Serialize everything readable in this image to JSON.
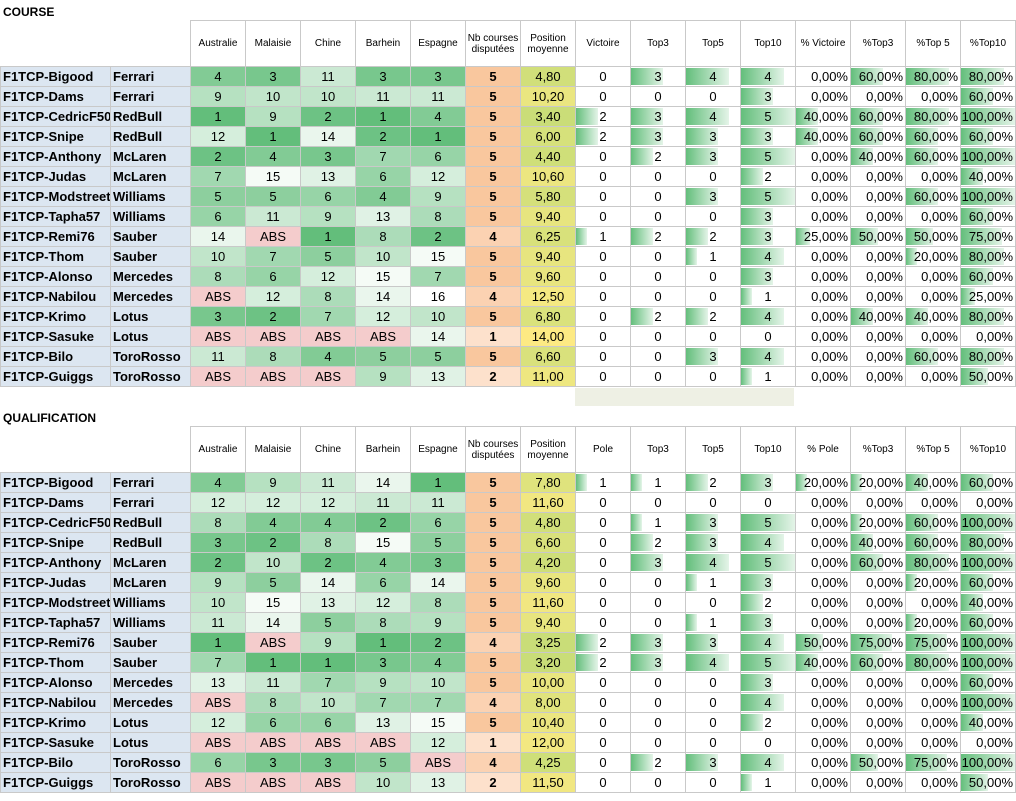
{
  "course": {
    "title": "COURSE",
    "headers": [
      "Australie",
      "Malaisie",
      "Chine",
      "Barhein",
      "Espagne",
      "Nb courses disputées",
      "Position moyenne",
      "Victoire",
      "Top3",
      "Top5",
      "Top10",
      "% Victoire",
      "%Top3",
      "%Top 5",
      "%Top10"
    ],
    "rows": [
      {
        "pilot": "F1TCP-Bigood",
        "team": "Ferrari",
        "races": [
          "4",
          "3",
          "11",
          "3",
          "3"
        ],
        "nb": "5",
        "avg": "4,80",
        "v": "0",
        "t3": "3",
        "t5": "4",
        "t10": "4",
        "pv": "0,00%",
        "p3": "60,00%",
        "p5": "80,00%",
        "p10": "80,00%"
      },
      {
        "pilot": "F1TCP-Dams",
        "team": "Ferrari",
        "races": [
          "9",
          "10",
          "10",
          "11",
          "11"
        ],
        "nb": "5",
        "avg": "10,20",
        "v": "0",
        "t3": "0",
        "t5": "0",
        "t10": "3",
        "pv": "0,00%",
        "p3": "0,00%",
        "p5": "0,00%",
        "p10": "60,00%"
      },
      {
        "pilot": "F1TCP-CedricF50",
        "team": "RedBull",
        "races": [
          "1",
          "9",
          "2",
          "1",
          "4"
        ],
        "nb": "5",
        "avg": "3,40",
        "v": "2",
        "t3": "3",
        "t5": "4",
        "t10": "5",
        "pv": "40,00%",
        "p3": "60,00%",
        "p5": "80,00%",
        "p10": "100,00%"
      },
      {
        "pilot": "F1TCP-Snipe",
        "team": "RedBull",
        "races": [
          "12",
          "1",
          "14",
          "2",
          "1"
        ],
        "nb": "5",
        "avg": "6,00",
        "v": "2",
        "t3": "3",
        "t5": "3",
        "t10": "3",
        "pv": "40,00%",
        "p3": "60,00%",
        "p5": "60,00%",
        "p10": "60,00%"
      },
      {
        "pilot": "F1TCP-Anthony",
        "team": "McLaren",
        "races": [
          "2",
          "4",
          "3",
          "7",
          "6"
        ],
        "nb": "5",
        "avg": "4,40",
        "v": "0",
        "t3": "2",
        "t5": "3",
        "t10": "5",
        "pv": "0,00%",
        "p3": "40,00%",
        "p5": "60,00%",
        "p10": "100,00%"
      },
      {
        "pilot": "F1TCP-Judas",
        "team": "McLaren",
        "races": [
          "7",
          "15",
          "13",
          "6",
          "12"
        ],
        "nb": "5",
        "avg": "10,60",
        "v": "0",
        "t3": "0",
        "t5": "0",
        "t10": "2",
        "pv": "0,00%",
        "p3": "0,00%",
        "p5": "0,00%",
        "p10": "40,00%"
      },
      {
        "pilot": "F1TCP-Modstreet",
        "team": "Williams",
        "races": [
          "5",
          "5",
          "6",
          "4",
          "9"
        ],
        "nb": "5",
        "avg": "5,80",
        "v": "0",
        "t3": "0",
        "t5": "3",
        "t10": "5",
        "pv": "0,00%",
        "p3": "0,00%",
        "p5": "60,00%",
        "p10": "100,00%"
      },
      {
        "pilot": "F1TCP-Tapha57",
        "team": "Williams",
        "races": [
          "6",
          "11",
          "9",
          "13",
          "8"
        ],
        "nb": "5",
        "avg": "9,40",
        "v": "0",
        "t3": "0",
        "t5": "0",
        "t10": "3",
        "pv": "0,00%",
        "p3": "0,00%",
        "p5": "0,00%",
        "p10": "60,00%"
      },
      {
        "pilot": "F1TCP-Remi76",
        "team": "Sauber",
        "races": [
          "14",
          "ABS",
          "1",
          "8",
          "2"
        ],
        "nb": "4",
        "avg": "6,25",
        "v": "1",
        "t3": "2",
        "t5": "2",
        "t10": "3",
        "pv": "25,00%",
        "p3": "50,00%",
        "p5": "50,00%",
        "p10": "75,00%"
      },
      {
        "pilot": "F1TCP-Thom",
        "team": "Sauber",
        "races": [
          "10",
          "7",
          "5",
          "10",
          "15"
        ],
        "nb": "5",
        "avg": "9,40",
        "v": "0",
        "t3": "0",
        "t5": "1",
        "t10": "4",
        "pv": "0,00%",
        "p3": "0,00%",
        "p5": "20,00%",
        "p10": "80,00%"
      },
      {
        "pilot": "F1TCP-Alonso",
        "team": "Mercedes",
        "races": [
          "8",
          "6",
          "12",
          "15",
          "7"
        ],
        "nb": "5",
        "avg": "9,60",
        "v": "0",
        "t3": "0",
        "t5": "0",
        "t10": "3",
        "pv": "0,00%",
        "p3": "0,00%",
        "p5": "0,00%",
        "p10": "60,00%"
      },
      {
        "pilot": "F1TCP-Nabilou",
        "team": "Mercedes",
        "races": [
          "ABS",
          "12",
          "8",
          "14",
          "16"
        ],
        "nb": "4",
        "avg": "12,50",
        "v": "0",
        "t3": "0",
        "t5": "0",
        "t10": "1",
        "pv": "0,00%",
        "p3": "0,00%",
        "p5": "0,00%",
        "p10": "25,00%"
      },
      {
        "pilot": "F1TCP-Krimo",
        "team": "Lotus",
        "races": [
          "3",
          "2",
          "7",
          "12",
          "10"
        ],
        "nb": "5",
        "avg": "6,80",
        "v": "0",
        "t3": "2",
        "t5": "2",
        "t10": "4",
        "pv": "0,00%",
        "p3": "40,00%",
        "p5": "40,00%",
        "p10": "80,00%"
      },
      {
        "pilot": "F1TCP-Sasuke",
        "team": "Lotus",
        "races": [
          "ABS",
          "ABS",
          "ABS",
          "ABS",
          "14"
        ],
        "nb": "1",
        "avg": "14,00",
        "v": "0",
        "t3": "0",
        "t5": "0",
        "t10": "0",
        "pv": "0,00%",
        "p3": "0,00%",
        "p5": "0,00%",
        "p10": "0,00%"
      },
      {
        "pilot": "F1TCP-Bilo",
        "team": "ToroRosso",
        "races": [
          "11",
          "8",
          "4",
          "5",
          "5"
        ],
        "nb": "5",
        "avg": "6,60",
        "v": "0",
        "t3": "0",
        "t5": "3",
        "t10": "4",
        "pv": "0,00%",
        "p3": "0,00%",
        "p5": "60,00%",
        "p10": "80,00%"
      },
      {
        "pilot": "F1TCP-Guiggs",
        "team": "ToroRosso",
        "races": [
          "ABS",
          "ABS",
          "ABS",
          "9",
          "13"
        ],
        "nb": "2",
        "avg": "11,00",
        "v": "0",
        "t3": "0",
        "t5": "0",
        "t10": "1",
        "pv": "0,00%",
        "p3": "0,00%",
        "p5": "0,00%",
        "p10": "50,00%"
      }
    ]
  },
  "qualification": {
    "title": "QUALIFICATION",
    "headers": [
      "Australie",
      "Malaisie",
      "Chine",
      "Barhein",
      "Espagne",
      "Nb courses disputées",
      "Position moyenne",
      "Pole",
      "Top3",
      "Top5",
      "Top10",
      "% Pole",
      "%Top3",
      "%Top 5",
      "%Top10"
    ],
    "rows": [
      {
        "pilot": "F1TCP-Bigood",
        "team": "Ferrari",
        "races": [
          "4",
          "9",
          "11",
          "14",
          "1"
        ],
        "nb": "5",
        "avg": "7,80",
        "v": "1",
        "t3": "1",
        "t5": "2",
        "t10": "3",
        "pv": "20,00%",
        "p3": "20,00%",
        "p5": "40,00%",
        "p10": "60,00%"
      },
      {
        "pilot": "F1TCP-Dams",
        "team": "Ferrari",
        "races": [
          "12",
          "12",
          "12",
          "11",
          "11"
        ],
        "nb": "5",
        "avg": "11,60",
        "v": "0",
        "t3": "0",
        "t5": "0",
        "t10": "0",
        "pv": "0,00%",
        "p3": "0,00%",
        "p5": "0,00%",
        "p10": "0,00%"
      },
      {
        "pilot": "F1TCP-CedricF50",
        "team": "RedBull",
        "races": [
          "8",
          "4",
          "4",
          "2",
          "6"
        ],
        "nb": "5",
        "avg": "4,80",
        "v": "0",
        "t3": "1",
        "t5": "3",
        "t10": "5",
        "pv": "0,00%",
        "p3": "20,00%",
        "p5": "60,00%",
        "p10": "100,00%"
      },
      {
        "pilot": "F1TCP-Snipe",
        "team": "RedBull",
        "races": [
          "3",
          "2",
          "8",
          "15",
          "5"
        ],
        "nb": "5",
        "avg": "6,60",
        "v": "0",
        "t3": "2",
        "t5": "3",
        "t10": "4",
        "pv": "0,00%",
        "p3": "40,00%",
        "p5": "60,00%",
        "p10": "80,00%"
      },
      {
        "pilot": "F1TCP-Anthony",
        "team": "McLaren",
        "races": [
          "2",
          "10",
          "2",
          "4",
          "3"
        ],
        "nb": "5",
        "avg": "4,20",
        "v": "0",
        "t3": "3",
        "t5": "4",
        "t10": "5",
        "pv": "0,00%",
        "p3": "60,00%",
        "p5": "80,00%",
        "p10": "100,00%"
      },
      {
        "pilot": "F1TCP-Judas",
        "team": "McLaren",
        "races": [
          "9",
          "5",
          "14",
          "6",
          "14"
        ],
        "nb": "5",
        "avg": "9,60",
        "v": "0",
        "t3": "0",
        "t5": "1",
        "t10": "3",
        "pv": "0,00%",
        "p3": "0,00%",
        "p5": "20,00%",
        "p10": "60,00%"
      },
      {
        "pilot": "F1TCP-Modstreet",
        "team": "Williams",
        "races": [
          "10",
          "15",
          "13",
          "12",
          "8"
        ],
        "nb": "5",
        "avg": "11,60",
        "v": "0",
        "t3": "0",
        "t5": "0",
        "t10": "2",
        "pv": "0,00%",
        "p3": "0,00%",
        "p5": "0,00%",
        "p10": "40,00%"
      },
      {
        "pilot": "F1TCP-Tapha57",
        "team": "Williams",
        "races": [
          "11",
          "14",
          "5",
          "8",
          "9"
        ],
        "nb": "5",
        "avg": "9,40",
        "v": "0",
        "t3": "0",
        "t5": "1",
        "t10": "3",
        "pv": "0,00%",
        "p3": "0,00%",
        "p5": "20,00%",
        "p10": "60,00%"
      },
      {
        "pilot": "F1TCP-Remi76",
        "team": "Sauber",
        "races": [
          "1",
          "ABS",
          "9",
          "1",
          "2"
        ],
        "nb": "4",
        "avg": "3,25",
        "v": "2",
        "t3": "3",
        "t5": "3",
        "t10": "4",
        "pv": "50,00%",
        "p3": "75,00%",
        "p5": "75,00%",
        "p10": "100,00%"
      },
      {
        "pilot": "F1TCP-Thom",
        "team": "Sauber",
        "races": [
          "7",
          "1",
          "1",
          "3",
          "4"
        ],
        "nb": "5",
        "avg": "3,20",
        "v": "2",
        "t3": "3",
        "t5": "4",
        "t10": "5",
        "pv": "40,00%",
        "p3": "60,00%",
        "p5": "80,00%",
        "p10": "100,00%"
      },
      {
        "pilot": "F1TCP-Alonso",
        "team": "Mercedes",
        "races": [
          "13",
          "11",
          "7",
          "9",
          "10"
        ],
        "nb": "5",
        "avg": "10,00",
        "v": "0",
        "t3": "0",
        "t5": "0",
        "t10": "3",
        "pv": "0,00%",
        "p3": "0,00%",
        "p5": "0,00%",
        "p10": "60,00%"
      },
      {
        "pilot": "F1TCP-Nabilou",
        "team": "Mercedes",
        "races": [
          "ABS",
          "8",
          "10",
          "7",
          "7"
        ],
        "nb": "4",
        "avg": "8,00",
        "v": "0",
        "t3": "0",
        "t5": "0",
        "t10": "4",
        "pv": "0,00%",
        "p3": "0,00%",
        "p5": "0,00%",
        "p10": "100,00%"
      },
      {
        "pilot": "F1TCP-Krimo",
        "team": "Lotus",
        "races": [
          "12",
          "6",
          "6",
          "13",
          "15"
        ],
        "nb": "5",
        "avg": "10,40",
        "v": "0",
        "t3": "0",
        "t5": "0",
        "t10": "2",
        "pv": "0,00%",
        "p3": "0,00%",
        "p5": "0,00%",
        "p10": "40,00%"
      },
      {
        "pilot": "F1TCP-Sasuke",
        "team": "Lotus",
        "races": [
          "ABS",
          "ABS",
          "ABS",
          "ABS",
          "12"
        ],
        "nb": "1",
        "avg": "12,00",
        "v": "0",
        "t3": "0",
        "t5": "0",
        "t10": "0",
        "pv": "0,00%",
        "p3": "0,00%",
        "p5": "0,00%",
        "p10": "0,00%"
      },
      {
        "pilot": "F1TCP-Bilo",
        "team": "ToroRosso",
        "races": [
          "6",
          "3",
          "3",
          "5",
          "ABS"
        ],
        "nb": "4",
        "avg": "4,25",
        "v": "0",
        "t3": "2",
        "t5": "3",
        "t10": "4",
        "pv": "0,00%",
        "p3": "50,00%",
        "p5": "75,00%",
        "p10": "100,00%"
      },
      {
        "pilot": "F1TCP-Guiggs",
        "team": "ToroRosso",
        "races": [
          "ABS",
          "ABS",
          "ABS",
          "10",
          "13"
        ],
        "nb": "2",
        "avg": "11,50",
        "v": "0",
        "t3": "0",
        "t5": "0",
        "t10": "1",
        "pv": "0,00%",
        "p3": "0,00%",
        "p5": "0,00%",
        "p10": "50,00%"
      }
    ]
  }
}
